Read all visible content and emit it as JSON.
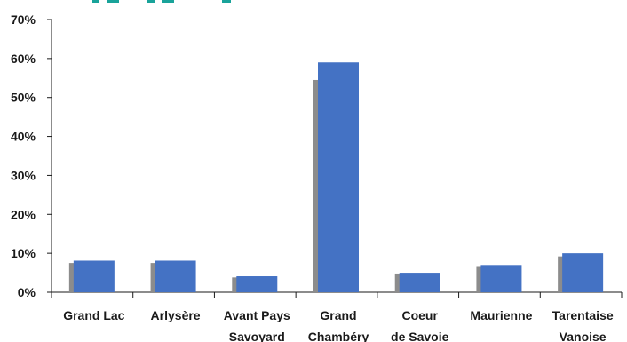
{
  "chart_data": {
    "type": "bar",
    "title": "",
    "xlabel": "",
    "ylabel": "",
    "ylim": [
      0,
      70
    ],
    "y_ticks": [
      "0%",
      "10%",
      "20%",
      "30%",
      "40%",
      "50%",
      "60%",
      "70%"
    ],
    "y_tick_values": [
      0,
      10,
      20,
      30,
      40,
      50,
      60,
      70
    ],
    "grid": false,
    "categories": [
      [
        "Grand Lac"
      ],
      [
        "Arlysère"
      ],
      [
        "Avant Pays",
        "Savoyard"
      ],
      [
        "Grand",
        "Chambéry"
      ],
      [
        "Coeur",
        "de Savoie"
      ],
      [
        "Maurienne"
      ],
      [
        "Tarentaise",
        "Vanoise"
      ]
    ],
    "series": [
      {
        "values": [
          7.5,
          7.5,
          3.8,
          54.5,
          4.8,
          6.5,
          9.2
        ],
        "color": "#8c8c8c"
      },
      {
        "values": [
          8.1,
          8.1,
          4.1,
          59.0,
          5.0,
          7.0,
          10.0
        ],
        "color": "#4472c4"
      }
    ],
    "colors": {
      "axis": "#1a1a1a",
      "title_accent": "#19a39a"
    }
  }
}
